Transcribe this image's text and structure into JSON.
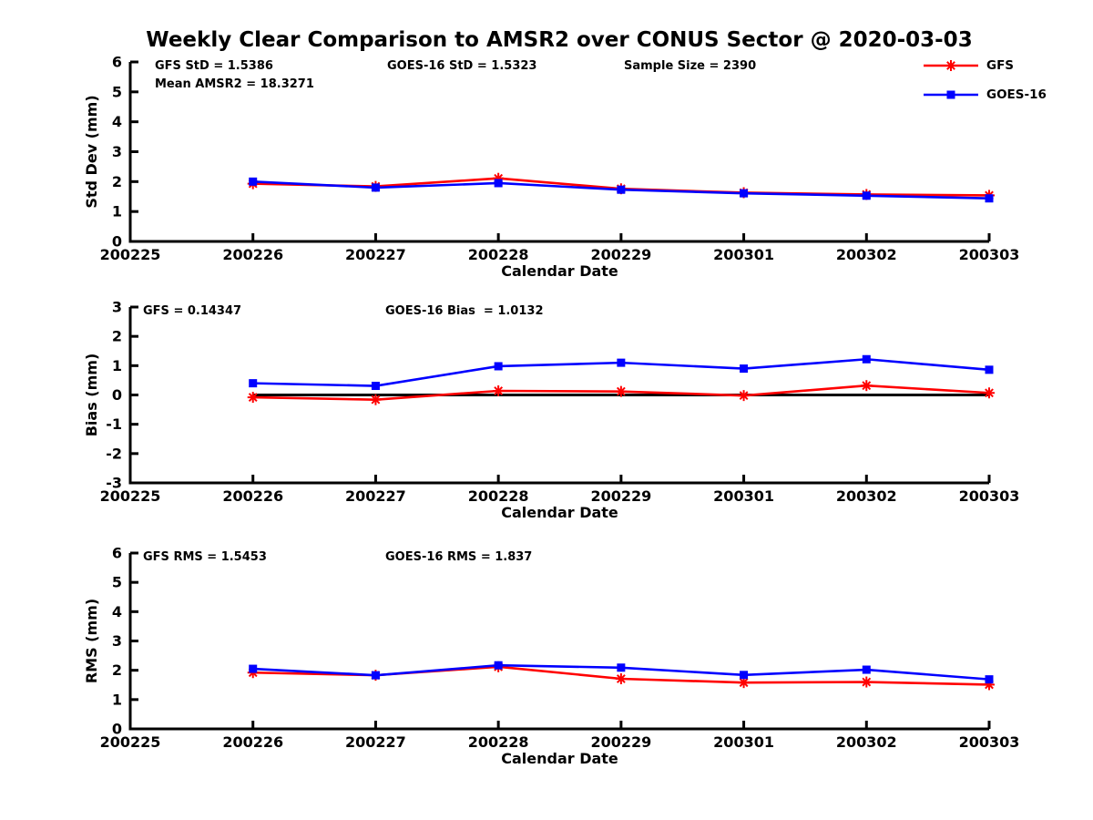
{
  "title": "Weekly Clear Comparison to AMSR2 over CONUS Sector @ 2020-03-03",
  "colors": {
    "gfs": "#ff0000",
    "goes16": "#0000ff",
    "axis": "#000000",
    "zero_line": "#000000",
    "background": "#ffffff"
  },
  "legend": {
    "position": "top-right",
    "items": [
      {
        "label": "GFS",
        "color": "#ff0000",
        "marker": "asterisk"
      },
      {
        "label": "GOES-16",
        "color": "#0000ff",
        "marker": "square"
      }
    ]
  },
  "chart_data": [
    {
      "id": "std-dev",
      "type": "line",
      "title": "",
      "xlabel": "Calendar Date",
      "ylabel": "Std Dev (mm)",
      "ylim": [
        0,
        6
      ],
      "yticks": [
        0,
        1,
        2,
        3,
        4,
        5,
        6
      ],
      "grid": false,
      "x_tick_labels": [
        "200225",
        "200226",
        "200227",
        "200228",
        "200229",
        "200301",
        "200302",
        "200303"
      ],
      "x": [
        "200226",
        "200227",
        "200228",
        "200229",
        "200301",
        "200302",
        "200303"
      ],
      "series": [
        {
          "name": "GFS",
          "color": "#ff0000",
          "marker": "asterisk",
          "values": [
            1.93,
            1.84,
            2.11,
            1.76,
            1.63,
            1.57,
            1.54
          ]
        },
        {
          "name": "GOES-16",
          "color": "#0000ff",
          "marker": "square",
          "values": [
            2.0,
            1.8,
            1.95,
            1.73,
            1.61,
            1.53,
            1.44
          ]
        }
      ],
      "zero_line": false,
      "annotations": [
        {
          "text": "GFS StD = 1.5386",
          "dx": 27,
          "row": 0
        },
        {
          "text": "GOES-16 StD = 1.5323",
          "dx": 282,
          "row": 0
        },
        {
          "text": "Sample Size = 2390",
          "dx": 542,
          "row": 0
        },
        {
          "text": "Mean AMSR2 = 18.3271",
          "dx": 27,
          "row": 1
        }
      ]
    },
    {
      "id": "bias",
      "type": "line",
      "title": "",
      "xlabel": "Calendar Date",
      "ylabel": "Bias (mm)",
      "ylim": [
        -3,
        3
      ],
      "yticks": [
        -3,
        -2,
        -1,
        0,
        1,
        2,
        3
      ],
      "grid": false,
      "x_tick_labels": [
        "200225",
        "200226",
        "200227",
        "200228",
        "200229",
        "200301",
        "200302",
        "200303"
      ],
      "x": [
        "200226",
        "200227",
        "200228",
        "200229",
        "200301",
        "200302",
        "200303"
      ],
      "series": [
        {
          "name": "GFS",
          "color": "#ff0000",
          "marker": "asterisk",
          "values": [
            -0.08,
            -0.16,
            0.14,
            0.12,
            -0.02,
            0.32,
            0.07
          ]
        },
        {
          "name": "GOES-16",
          "color": "#0000ff",
          "marker": "square",
          "values": [
            0.4,
            0.31,
            0.98,
            1.1,
            0.9,
            1.22,
            0.86
          ]
        }
      ],
      "zero_line": true,
      "annotations": [
        {
          "text": "GFS = 0.14347",
          "dx": 14,
          "row": 0
        },
        {
          "text": "GOES-16 Bias  = 1.0132",
          "dx": 280,
          "row": 0
        }
      ]
    },
    {
      "id": "rms",
      "type": "line",
      "title": "",
      "xlabel": "Calendar Date",
      "ylabel": "RMS (mm)",
      "ylim": [
        0,
        6
      ],
      "yticks": [
        0,
        1,
        2,
        3,
        4,
        5,
        6
      ],
      "grid": false,
      "x_tick_labels": [
        "200225",
        "200226",
        "200227",
        "200228",
        "200229",
        "200301",
        "200302",
        "200303"
      ],
      "x": [
        "200226",
        "200227",
        "200228",
        "200229",
        "200301",
        "200302",
        "200303"
      ],
      "series": [
        {
          "name": "GFS",
          "color": "#ff0000",
          "marker": "asterisk",
          "values": [
            1.92,
            1.83,
            2.12,
            1.71,
            1.58,
            1.6,
            1.51
          ]
        },
        {
          "name": "GOES-16",
          "color": "#0000ff",
          "marker": "square",
          "values": [
            2.05,
            1.83,
            2.17,
            2.09,
            1.84,
            2.02,
            1.69
          ]
        }
      ],
      "zero_line": false,
      "annotations": [
        {
          "text": "GFS RMS = 1.5453",
          "dx": 14,
          "row": 0
        },
        {
          "text": "GOES-16 RMS = 1.837",
          "dx": 280,
          "row": 0
        }
      ]
    }
  ]
}
